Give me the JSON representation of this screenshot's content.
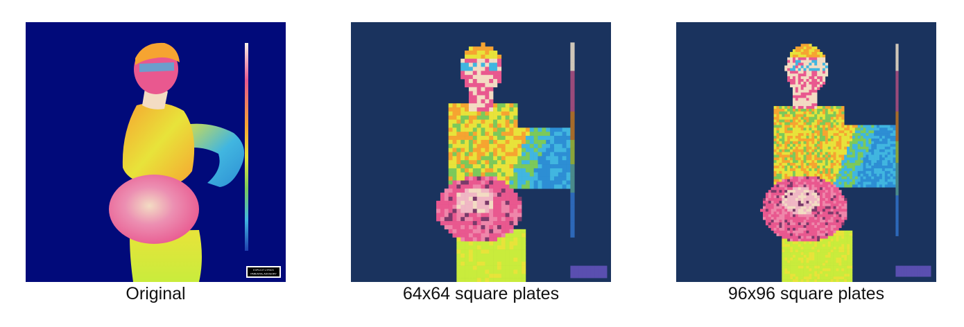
{
  "figure": {
    "panels": [
      {
        "caption": "Original",
        "background": "#010a7a",
        "grid": 0
      },
      {
        "caption": "64x64 square plates",
        "background": "#1a335e",
        "grid": 64
      },
      {
        "caption": "96x96 square plates",
        "background": "#1a335e",
        "grid": 96
      }
    ],
    "badge_text": [
      "EXPLICIT LYRICS",
      "PARENTAL ADVISORY"
    ],
    "palette": {
      "pink": "#e9588f",
      "cream": "#f3dcc3",
      "orange": "#f6a431",
      "yellow": "#e8e33a",
      "lime": "#c9ec3c",
      "green": "#7cc95a",
      "blue": "#2d8ed4",
      "cyan": "#41b6e0"
    }
  }
}
